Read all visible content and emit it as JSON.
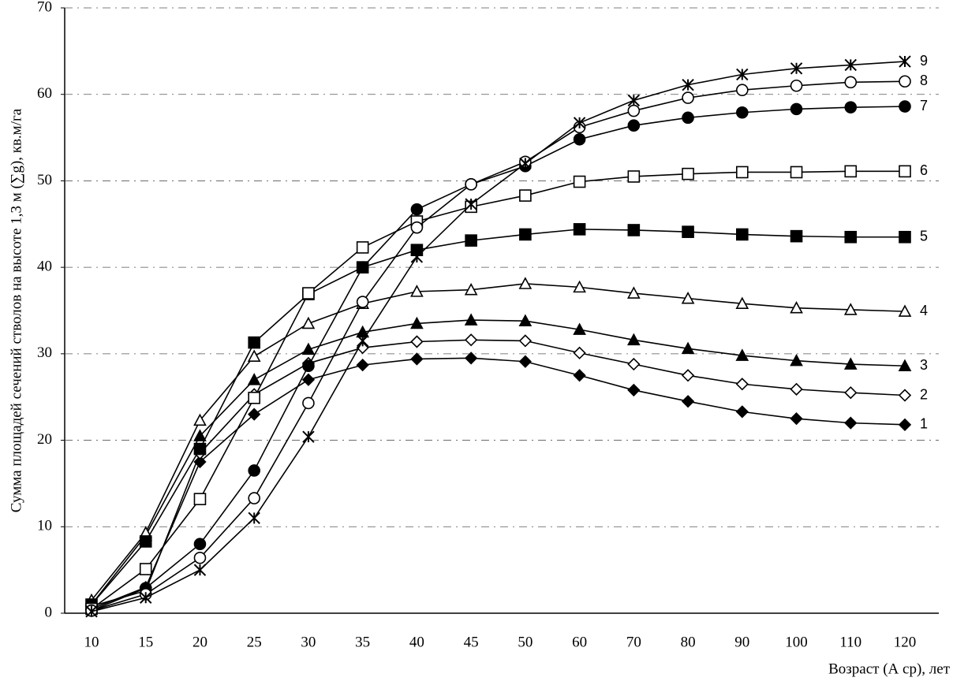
{
  "chart_data": {
    "type": "line",
    "x_label": "Возраст (А ср), лет",
    "y_label": "Сумма площадей сечений стволов на высоте 1,3 м (∑g), кв.м/га",
    "categories": [
      10,
      15,
      20,
      25,
      30,
      35,
      40,
      45,
      50,
      60,
      70,
      80,
      90,
      100,
      110,
      120
    ],
    "ylim": [
      0,
      70
    ],
    "yticks": [
      0,
      10,
      20,
      30,
      40,
      50,
      60,
      70
    ],
    "grid": true,
    "series": [
      {
        "name": "1",
        "color": "#000000",
        "marker": "diamond",
        "filled": true,
        "values": [
          0.5,
          3.0,
          17.5,
          23.0,
          27.0,
          28.7,
          29.4,
          29.5,
          29.1,
          27.5,
          25.8,
          24.5,
          23.3,
          22.5,
          22.0,
          21.8
        ]
      },
      {
        "name": "2",
        "color": "#000000",
        "marker": "diamond",
        "filled": false,
        "values": [
          0.8,
          2.6,
          18.5,
          25.3,
          28.9,
          30.7,
          31.4,
          31.6,
          31.5,
          30.1,
          28.8,
          27.5,
          26.5,
          25.9,
          25.5,
          25.2
        ]
      },
      {
        "name": "3",
        "color": "#000000",
        "marker": "triangle",
        "filled": true,
        "values": [
          1.0,
          9.0,
          20.5,
          27.0,
          30.5,
          32.5,
          33.5,
          33.9,
          33.8,
          32.8,
          31.6,
          30.6,
          29.8,
          29.2,
          28.8,
          28.6
        ]
      },
      {
        "name": "4",
        "color": "#000000",
        "marker": "triangle",
        "filled": false,
        "values": [
          1.5,
          9.3,
          22.3,
          29.7,
          33.5,
          35.8,
          37.2,
          37.4,
          38.1,
          37.7,
          37.0,
          36.4,
          35.8,
          35.3,
          35.1,
          34.9
        ]
      },
      {
        "name": "5",
        "color": "#000000",
        "marker": "square",
        "filled": true,
        "values": [
          1.0,
          8.3,
          19.0,
          31.3,
          36.9,
          40.0,
          42.0,
          43.1,
          43.8,
          44.4,
          44.3,
          44.1,
          43.8,
          43.6,
          43.5,
          43.5
        ]
      },
      {
        "name": "6",
        "color": "#000000",
        "marker": "square",
        "filled": false,
        "values": [
          0.5,
          5.1,
          13.2,
          24.9,
          37.0,
          42.3,
          45.3,
          47.0,
          48.3,
          49.9,
          50.5,
          50.8,
          51.0,
          51.0,
          51.1,
          51.1
        ]
      },
      {
        "name": "7",
        "color": "#000000",
        "marker": "circle",
        "filled": true,
        "values": [
          0.3,
          2.9,
          8.0,
          16.5,
          28.6,
          40.0,
          46.7,
          49.6,
          51.7,
          54.8,
          56.4,
          57.3,
          57.9,
          58.3,
          58.5,
          58.6
        ]
      },
      {
        "name": "8",
        "color": "#000000",
        "marker": "circle",
        "filled": false,
        "values": [
          0.3,
          2.2,
          6.4,
          13.3,
          24.3,
          36.0,
          44.6,
          49.6,
          52.2,
          56.2,
          58.1,
          59.6,
          60.5,
          61.0,
          61.4,
          61.5
        ]
      },
      {
        "name": "9",
        "color": "#000000",
        "marker": "asterisk",
        "filled": false,
        "values": [
          0.2,
          1.8,
          5.0,
          11.0,
          20.4,
          31.5,
          41.2,
          47.3,
          52.0,
          56.7,
          59.3,
          61.1,
          62.3,
          63.0,
          63.4,
          63.8
        ]
      }
    ]
  }
}
